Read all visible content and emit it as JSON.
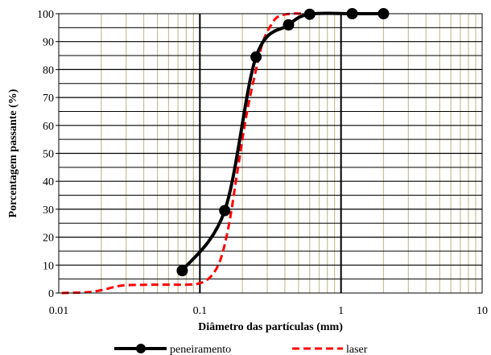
{
  "chart_data": {
    "type": "line",
    "title": "",
    "xlabel": "Diâmetro das partículas (mm)",
    "ylabel": "Porcentagem passante (%)",
    "xscale": "log",
    "xlim": [
      0.01,
      10
    ],
    "ylim": [
      0,
      100
    ],
    "x_ticks": [
      "0.01",
      "0.1",
      "1",
      "10"
    ],
    "y_ticks": [
      "0",
      "10",
      "20",
      "30",
      "40",
      "50",
      "60",
      "70",
      "80",
      "90",
      "100"
    ],
    "grid": true,
    "legend_position": "bottom",
    "series": [
      {
        "name": "peneiramento",
        "color": "#000000",
        "style": "solid",
        "markers": true,
        "points": [
          {
            "x": 0.075,
            "y": 8
          },
          {
            "x": 0.15,
            "y": 29.5
          },
          {
            "x": 0.25,
            "y": 84.5
          },
          {
            "x": 0.425,
            "y": 96
          },
          {
            "x": 0.6,
            "y": 99.8
          },
          {
            "x": 1.2,
            "y": 100
          },
          {
            "x": 2.0,
            "y": 100
          }
        ]
      },
      {
        "name": "laser",
        "color": "#ff0000",
        "style": "dashed",
        "markers": false,
        "points": [
          {
            "x": 0.0105,
            "y": 0
          },
          {
            "x": 0.016,
            "y": 0.3
          },
          {
            "x": 0.02,
            "y": 1
          },
          {
            "x": 0.025,
            "y": 2.2
          },
          {
            "x": 0.03,
            "y": 2.8
          },
          {
            "x": 0.05,
            "y": 3
          },
          {
            "x": 0.08,
            "y": 3
          },
          {
            "x": 0.1,
            "y": 3.5
          },
          {
            "x": 0.12,
            "y": 6
          },
          {
            "x": 0.14,
            "y": 12
          },
          {
            "x": 0.16,
            "y": 24
          },
          {
            "x": 0.18,
            "y": 40
          },
          {
            "x": 0.2,
            "y": 55
          },
          {
            "x": 0.22,
            "y": 67
          },
          {
            "x": 0.25,
            "y": 80
          },
          {
            "x": 0.28,
            "y": 90
          },
          {
            "x": 0.32,
            "y": 96
          },
          {
            "x": 0.36,
            "y": 99
          },
          {
            "x": 0.45,
            "y": 100
          },
          {
            "x": 0.6,
            "y": 100
          },
          {
            "x": 1.0,
            "y": 100
          },
          {
            "x": 2.0,
            "y": 100
          }
        ]
      }
    ]
  }
}
